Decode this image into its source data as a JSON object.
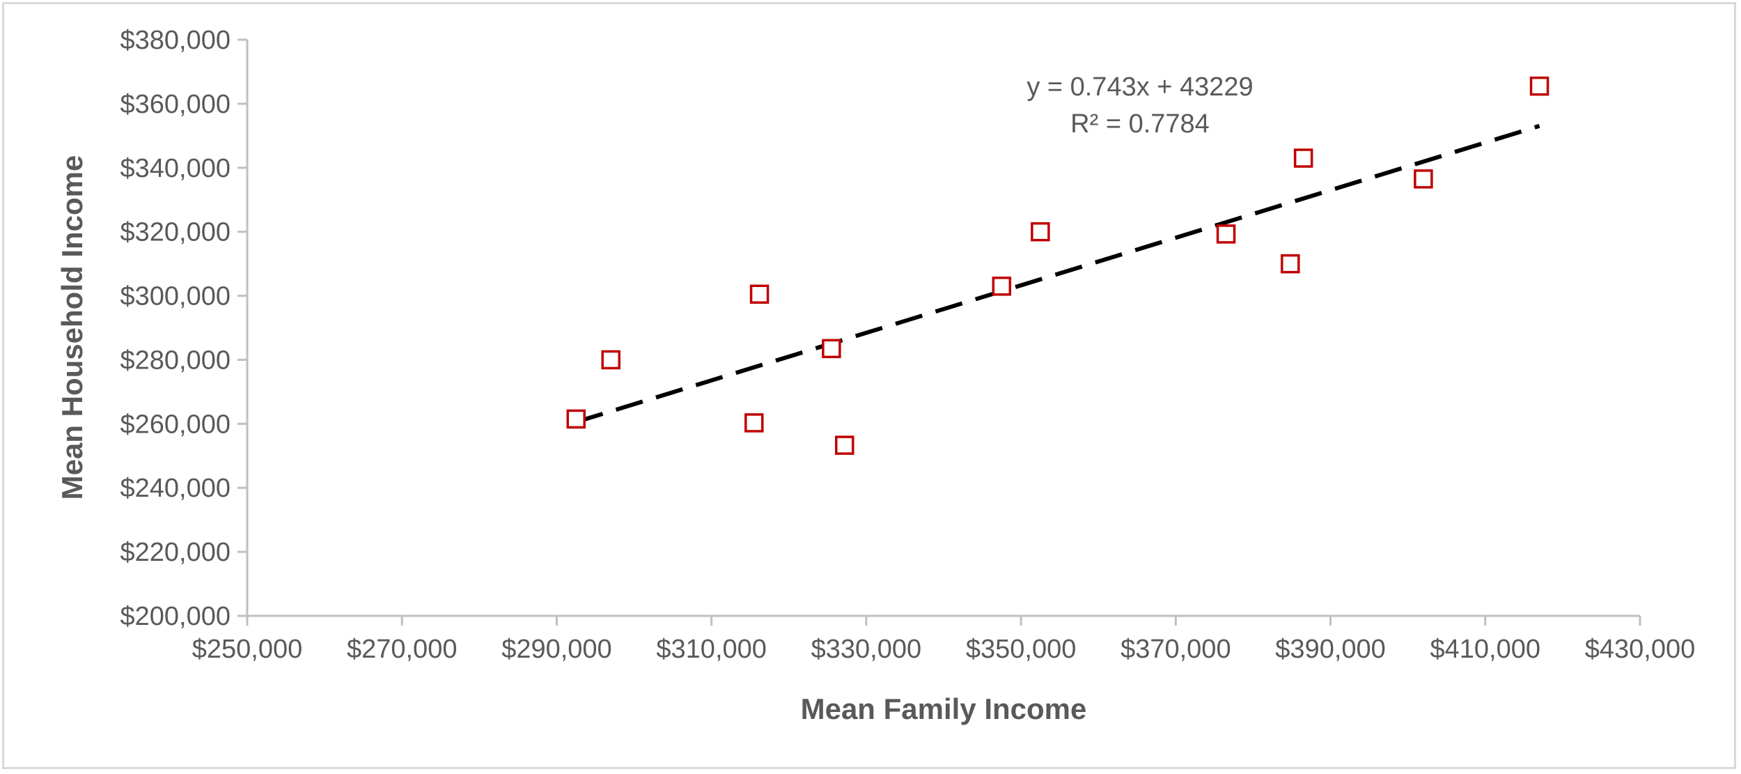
{
  "chart_data": {
    "type": "scatter",
    "title": "",
    "xlabel": "Mean Family Income",
    "ylabel": "Mean Household Income",
    "xlim": [
      250000,
      430000
    ],
    "ylim": [
      200000,
      380000
    ],
    "x_ticks": [
      250000,
      270000,
      290000,
      310000,
      330000,
      350000,
      370000,
      390000,
      410000,
      430000
    ],
    "y_ticks": [
      200000,
      220000,
      240000,
      260000,
      280000,
      300000,
      320000,
      340000,
      360000,
      380000
    ],
    "x_tick_labels": [
      "$250,000",
      "$270,000",
      "$290,000",
      "$310,000",
      "$330,000",
      "$350,000",
      "$370,000",
      "$390,000",
      "$410,000",
      "$430,000"
    ],
    "y_tick_labels": [
      "$200,000",
      "$220,000",
      "$240,000",
      "$260,000",
      "$280,000",
      "$300,000",
      "$320,000",
      "$340,000",
      "$360,000",
      "$380,000"
    ],
    "grid": false,
    "legend": "none",
    "series": [
      {
        "marker": "hollow-square",
        "color": "#c00000",
        "points": [
          {
            "x": 292500,
            "y": 261500
          },
          {
            "x": 297000,
            "y": 280000
          },
          {
            "x": 315500,
            "y": 260300
          },
          {
            "x": 316200,
            "y": 300500
          },
          {
            "x": 325500,
            "y": 283500
          },
          {
            "x": 327200,
            "y": 253300
          },
          {
            "x": 347500,
            "y": 303000
          },
          {
            "x": 352500,
            "y": 320000
          },
          {
            "x": 376500,
            "y": 319300
          },
          {
            "x": 384800,
            "y": 310000
          },
          {
            "x": 386500,
            "y": 343000
          },
          {
            "x": 402000,
            "y": 336500
          },
          {
            "x": 417000,
            "y": 365500
          }
        ]
      }
    ],
    "trendline": {
      "type": "linear",
      "slope": 0.743,
      "intercept": 43229,
      "x_range": [
        292500,
        417000
      ],
      "color": "#000000",
      "style": "dashed",
      "equation_text": "y = 0.743x + 43229",
      "r2_text": "R² = 0.7784"
    }
  }
}
